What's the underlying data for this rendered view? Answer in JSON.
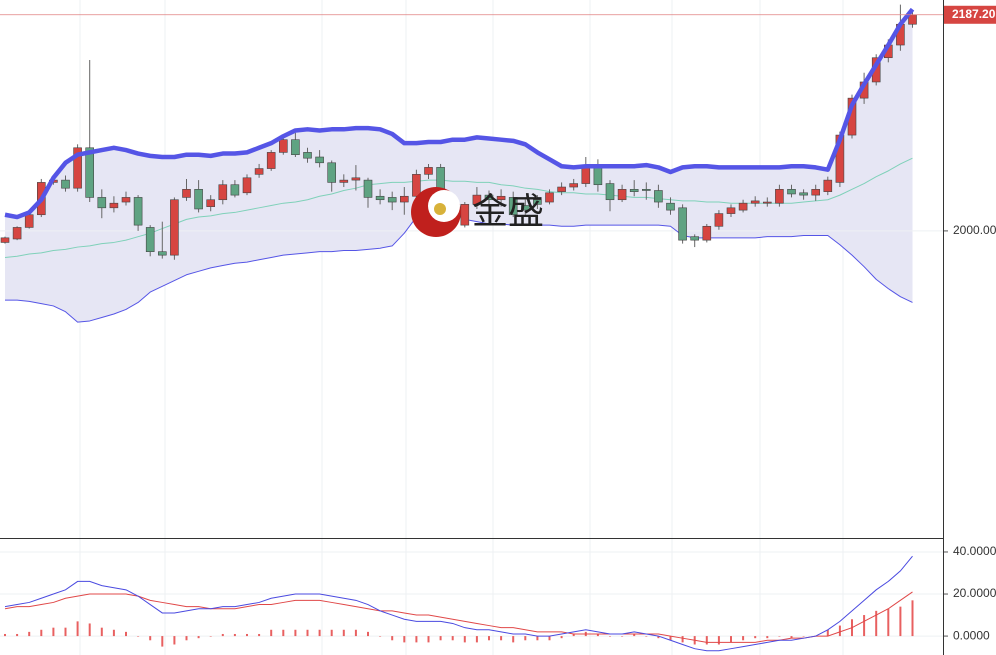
{
  "chart_data": [
    {
      "type": "candlestick",
      "open": [
        1990,
        1993,
        2003,
        2014,
        2042,
        2044,
        2037,
        2072,
        2029,
        2020,
        2025,
        2029,
        2003,
        1982,
        1979,
        2029,
        2036,
        2021,
        2027,
        2040,
        2033,
        2049,
        2054,
        2068,
        2079,
        2068,
        2064,
        2059,
        2042,
        2044,
        2044,
        2030,
        2029,
        2025,
        2030,
        2049,
        2055,
        2027,
        2005,
        2023,
        2031,
        2027,
        2029,
        2022,
        2027,
        2025,
        2034,
        2038,
        2041,
        2055,
        2041,
        2027,
        2036,
        2036,
        2035,
        2024,
        2020,
        1995,
        1992,
        2004,
        2015,
        2018,
        2024,
        2024,
        2024,
        2036,
        2033,
        2031,
        2034,
        2042,
        2083,
        2115,
        2129,
        2150,
        2161,
        2179
      ],
      "high": [
        1995,
        2004,
        2016,
        2045,
        2048,
        2048,
        2075,
        2148,
        2036,
        2030,
        2034,
        2031,
        2005,
        2008,
        2029,
        2045,
        2044,
        2031,
        2044,
        2044,
        2049,
        2058,
        2070,
        2083,
        2085,
        2072,
        2070,
        2061,
        2049,
        2057,
        2046,
        2036,
        2034,
        2038,
        2053,
        2058,
        2058,
        2029,
        2025,
        2038,
        2035,
        2036,
        2034,
        2027,
        2031,
        2036,
        2042,
        2045,
        2064,
        2062,
        2044,
        2040,
        2044,
        2042,
        2040,
        2029,
        2023,
        1997,
        2006,
        2018,
        2023,
        2027,
        2030,
        2029,
        2040,
        2040,
        2036,
        2040,
        2047,
        2086,
        2118,
        2137,
        2153,
        2166,
        2196,
        2190
      ],
      "low": [
        1989,
        1992,
        2002,
        2012,
        2040,
        2034,
        2034,
        2025,
        2011,
        2016,
        2022,
        2000,
        1978,
        1976,
        1975,
        2026,
        2016,
        2017,
        2023,
        2029,
        2031,
        2046,
        2052,
        2066,
        2064,
        2059,
        2055,
        2034,
        2038,
        2035,
        2020,
        2023,
        2018,
        2014,
        2023,
        2045,
        2023,
        2002,
        2003,
        2019,
        2022,
        2021,
        2012,
        2014,
        2019,
        2023,
        2031,
        2035,
        2038,
        2034,
        2017,
        2025,
        2030,
        2027,
        2020,
        2014,
        1989,
        1986,
        1990,
        2001,
        2012,
        2016,
        2021,
        2021,
        2021,
        2029,
        2027,
        2026,
        2031,
        2038,
        2080,
        2110,
        2126,
        2146,
        2156,
        2176
      ],
      "close": [
        1994,
        2003,
        2014,
        2042,
        2044,
        2037,
        2072,
        2029,
        2020,
        2024,
        2029,
        2005,
        1982,
        1979,
        2027,
        2036,
        2019,
        2027,
        2040,
        2031,
        2046,
        2054,
        2068,
        2079,
        2066,
        2063,
        2059,
        2042,
        2044,
        2046,
        2029,
        2027,
        2025,
        2030,
        2049,
        2055,
        2027,
        2005,
        2023,
        2031,
        2027,
        2030,
        2014,
        2018,
        2023,
        2033,
        2038,
        2041,
        2055,
        2040,
        2027,
        2036,
        2034,
        2035,
        2025,
        2018,
        1992,
        1992,
        2004,
        2015,
        2020,
        2024,
        2026,
        2025,
        2036,
        2032,
        2031,
        2036,
        2044,
        2083,
        2115,
        2129,
        2150,
        2161,
        2179,
        2187.2
      ],
      "upper_band": [
        2014,
        2012,
        2016,
        2027,
        2046,
        2059,
        2066,
        2068,
        2070,
        2072,
        2070,
        2067,
        2065,
        2064,
        2064,
        2066,
        2066,
        2065,
        2067,
        2067,
        2068,
        2072,
        2076,
        2082,
        2087,
        2088,
        2087,
        2088,
        2088,
        2089,
        2089,
        2088,
        2084,
        2076,
        2076,
        2077,
        2077,
        2079,
        2079,
        2081,
        2080,
        2079,
        2078,
        2075,
        2068,
        2062,
        2056,
        2055,
        2056,
        2056,
        2056,
        2056,
        2056,
        2057,
        2055,
        2051,
        2055,
        2056,
        2056,
        2055,
        2055,
        2055,
        2055,
        2055,
        2055,
        2056,
        2056,
        2055,
        2053,
        2079,
        2109,
        2127,
        2144,
        2161,
        2179,
        2192
      ],
      "middle_band": [
        1977,
        1978,
        1980,
        1981,
        1983,
        1984,
        1986,
        1987,
        1989,
        1990,
        1992,
        1995,
        1998,
        2002,
        2006,
        2010,
        2012,
        2013,
        2015,
        2016,
        2018,
        2020,
        2022,
        2024,
        2025,
        2027,
        2030,
        2032,
        2035,
        2037,
        2040,
        2041,
        2042,
        2042,
        2043,
        2044,
        2044,
        2043,
        2043,
        2042,
        2042,
        2040,
        2039,
        2037,
        2036,
        2034,
        2033,
        2033,
        2032,
        2032,
        2031,
        2030,
        2029,
        2029,
        2028,
        2027,
        2026,
        2026,
        2025,
        2025,
        2024,
        2024,
        2024,
        2024,
        2024,
        2024,
        2025,
        2026,
        2027,
        2031,
        2036,
        2041,
        2047,
        2052,
        2058,
        2063
      ],
      "lower_band": [
        1940,
        1940,
        1939,
        1937,
        1935,
        1930,
        1921,
        1922,
        1925,
        1928,
        1932,
        1938,
        1947,
        1952,
        1957,
        1962,
        1965,
        1968,
        1970,
        1972,
        1973,
        1975,
        1977,
        1979,
        1980,
        1981,
        1982,
        1982,
        1983,
        1983,
        1984,
        1985,
        1987,
        1998,
        2012,
        2018,
        2020,
        2016,
        2010,
        2008,
        2006,
        2006,
        2005,
        2005,
        2005,
        2005,
        2004,
        2004,
        2005,
        2005,
        2005,
        2005,
        2005,
        2005,
        2005,
        2004,
        1996,
        1994,
        1994,
        1994,
        1994,
        1994,
        1994,
        1995,
        1995,
        1995,
        1996,
        1996,
        1996,
        1988,
        1979,
        1969,
        1958,
        1950,
        1943,
        1938
      ],
      "up_color": "#d64541",
      "down_color": "#5fa382",
      "upper_color": "#5555e6",
      "middle_color": "#7fd1b9",
      "band_fill": "#e6e6f4",
      "ylim": [
        1734,
        2200
      ],
      "yticks": [
        {
          "value": 2000,
          "label": "2000.00"
        }
      ],
      "last_price": {
        "value": 2187.2,
        "label": "2187.20"
      },
      "watermark": "金盛"
    },
    {
      "type": "macd",
      "dif": [
        14,
        15,
        16,
        18,
        20,
        22,
        26,
        26,
        24,
        23,
        22,
        19,
        15,
        11,
        11,
        12,
        13,
        13,
        14,
        14,
        15,
        16,
        18,
        19,
        20,
        20,
        20,
        19,
        18,
        17,
        15,
        12,
        10,
        8,
        7,
        7,
        7,
        6,
        4,
        3,
        3,
        2,
        1,
        1,
        0,
        0,
        1,
        2,
        3,
        2,
        1,
        1,
        2,
        1,
        0,
        -2,
        -4,
        -6,
        -7,
        -7,
        -6,
        -5,
        -4,
        -3,
        -2,
        -2,
        -1,
        0,
        3,
        7,
        12,
        17,
        22,
        26,
        31,
        38
      ],
      "dea": [
        13,
        14,
        14,
        15,
        16,
        18,
        19,
        20,
        20,
        20,
        20,
        19,
        17,
        16,
        15,
        14,
        14,
        13,
        13,
        13,
        14,
        15,
        15,
        16,
        17,
        17,
        17,
        16,
        15,
        14,
        13,
        12,
        12,
        11,
        10,
        10,
        9,
        8,
        7,
        6,
        5,
        4,
        4,
        3,
        2,
        2,
        2,
        1,
        1,
        1,
        1,
        1,
        1,
        1,
        1,
        0,
        -1,
        -2,
        -3,
        -3,
        -3,
        -3,
        -3,
        -2,
        -2,
        -1,
        -1,
        0,
        0,
        2,
        4,
        7,
        10,
        13,
        17,
        21
      ],
      "hist": [
        1,
        1,
        2,
        3,
        4,
        4,
        7,
        6,
        4,
        3,
        2,
        0,
        -2,
        -5,
        -4,
        -2,
        -1,
        0,
        1,
        1,
        1,
        1,
        3,
        3,
        3,
        3,
        3,
        3,
        3,
        3,
        2,
        0,
        -2,
        -3,
        -3,
        -3,
        -2,
        -2,
        -3,
        -3,
        -2,
        -2,
        -3,
        -2,
        -2,
        -2,
        -1,
        1,
        2,
        1,
        0,
        0,
        1,
        0,
        -1,
        -2,
        -3,
        -4,
        -4,
        -4,
        -3,
        -2,
        -1,
        -1,
        0,
        -1,
        0,
        0,
        3,
        5,
        8,
        10,
        12,
        13,
        14,
        17
      ],
      "dif_color": "#4a4ae0",
      "dea_color": "#e04848",
      "hist_color": "#e86060",
      "ylim": [
        -9,
        45.7
      ],
      "yticks": [
        {
          "value": 40,
          "label": "40.0000"
        },
        {
          "value": 20,
          "label": "20.0000"
        },
        {
          "value": 0,
          "label": "0.0000"
        }
      ]
    }
  ]
}
